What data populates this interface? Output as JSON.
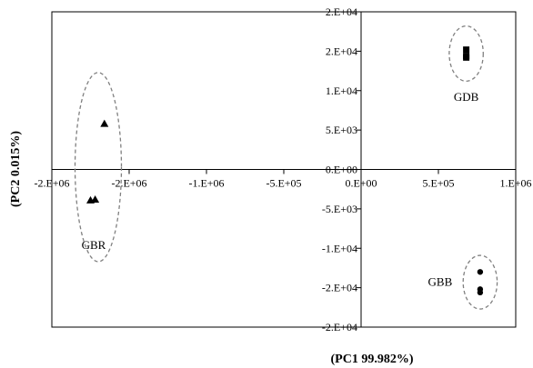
{
  "chart_data": {
    "type": "scatter",
    "xlabel": "(PC1 99.982%)",
    "ylabel": "(PC2 0.015%)",
    "xlim": [
      -2000000,
      1000000
    ],
    "ylim": [
      -20000,
      20000
    ],
    "x_ticks": [
      -2000000,
      -1500000,
      -1000000,
      -500000,
      0,
      500000,
      1000000
    ],
    "x_tick_labels": [
      "-2.E+06",
      "-2.E+06",
      "-1.E+06",
      "-5.E+05",
      "0.E+00",
      "5.E+05",
      "1.E+06"
    ],
    "y_ticks": [
      20000,
      15000,
      10000,
      5000,
      0,
      -5000,
      -10000,
      -15000,
      -20000
    ],
    "y_tick_labels": [
      "2.E+04",
      "2.E+04",
      "1.E+04",
      "5.E+03",
      "0.E+00",
      "-5.E+03",
      "-1.E+04",
      "-2.E+04",
      "-2.E+04"
    ],
    "grid": false,
    "legend": "none",
    "series": [
      {
        "marker": "square",
        "points": [
          [
            680000,
            15200
          ],
          [
            680000,
            14400
          ],
          [
            680000,
            14200
          ]
        ]
      },
      {
        "marker": "triangle",
        "points": [
          [
            -1660000,
            5800
          ],
          [
            -1720000,
            -3800
          ],
          [
            -1750000,
            -3900
          ]
        ]
      },
      {
        "marker": "circle",
        "points": [
          [
            770000,
            -13000
          ],
          [
            770000,
            -15200
          ],
          [
            770000,
            -15600
          ]
        ]
      }
    ],
    "groups": [
      {
        "label": "GDB",
        "cx": 680000,
        "cy": 14700,
        "rx": 110000,
        "ry": 3500
      },
      {
        "label": "GBR",
        "cx": -1700000,
        "cy": 300,
        "rx": 150000,
        "ry": 12000
      },
      {
        "label": "GBB",
        "cx": 770000,
        "cy": -14300,
        "rx": 110000,
        "ry": 3400
      }
    ],
    "colors": {
      "marker": "#000000",
      "ellipse": "#808080",
      "axis": "#000000"
    }
  }
}
